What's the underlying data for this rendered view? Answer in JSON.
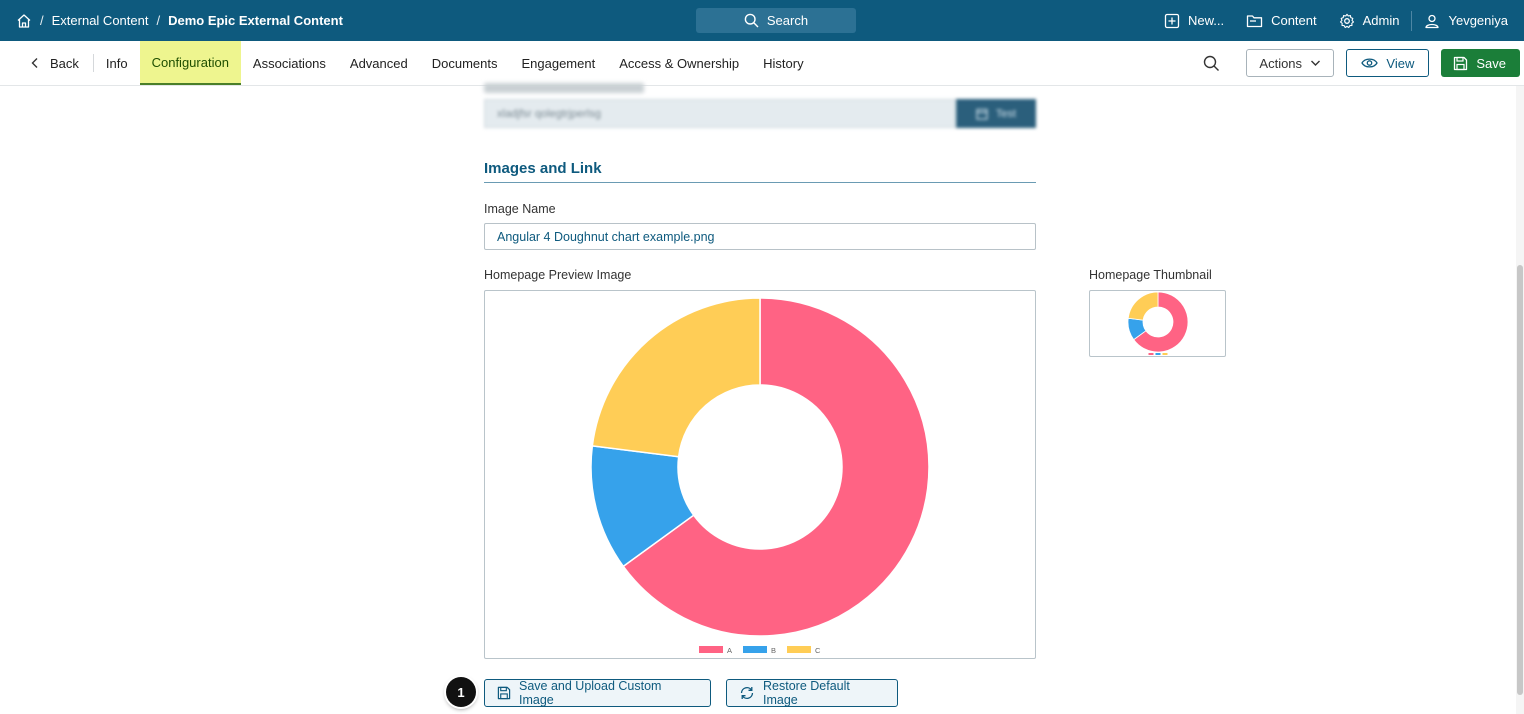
{
  "breadcrumb": {
    "sep": "/",
    "items": [
      "External Content",
      "Demo Epic External Content"
    ]
  },
  "topbar": {
    "search_label": "Search",
    "new_label": "New...",
    "content_label": "Content",
    "admin_label": "Admin",
    "user_label": "Yevgeniya"
  },
  "nav": {
    "back_label": "Back",
    "tabs": [
      "Info",
      "Configuration",
      "Associations",
      "Advanced",
      "Documents",
      "Engagement",
      "Access & Ownership",
      "History"
    ],
    "active_tab": "Configuration",
    "actions_label": "Actions",
    "view_label": "View",
    "save_label": "Save"
  },
  "blurred": {
    "field_value": "xladjfsr qolegtrjperlsg",
    "test_label": "Test"
  },
  "section": {
    "title": "Images and Link"
  },
  "image_name": {
    "label": "Image Name",
    "value": "Angular 4  Doughnut chart example.png"
  },
  "preview": {
    "label": "Homepage Preview Image"
  },
  "thumbnail": {
    "label": "Homepage Thumbnail"
  },
  "buttons": {
    "save_upload_label": "Save and Upload Custom Image",
    "restore_label": "Restore Default Image"
  },
  "step_badge": "1",
  "chart_data": {
    "type": "pie",
    "categories": [
      "A",
      "B",
      "C"
    ],
    "values": [
      65,
      12,
      23
    ],
    "colors": [
      "#ff6384",
      "#36a2eb",
      "#ffcd56"
    ],
    "legend": "bottom"
  },
  "colors": {
    "brand": "#0e5a7e",
    "active_tab": "#eef58f",
    "save": "#1b7e39"
  }
}
